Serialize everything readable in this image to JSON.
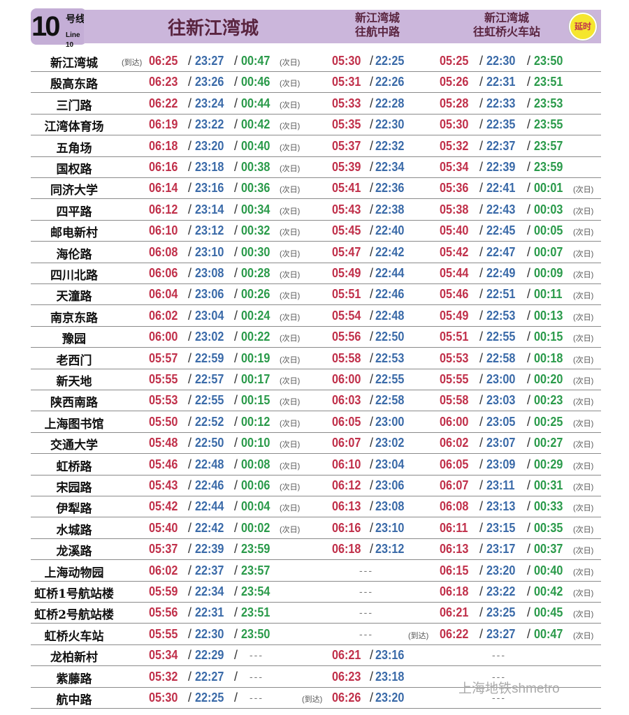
{
  "header": {
    "line_number": "10",
    "line_hao": "号线",
    "line_en": "Line 10",
    "dir1": "往新江湾城",
    "dir2_l1": "新江湾城",
    "dir2_l2": "往航中路",
    "dir3_l1": "新江湾城",
    "dir3_l2": "往虹桥火车站",
    "delay_badge": "延时"
  },
  "colors": {
    "first_train": "#c0304a",
    "last_train": "#3a6aa8",
    "extended_last": "#2a9a4a",
    "header_bg": "#cbb6db",
    "badge": "#f5e62e"
  },
  "labels": {
    "arrive": "(到达)",
    "next_day": "(次日)",
    "none": "---",
    "sep": "/"
  },
  "watermark": "上海地铁shmetro",
  "rows": [
    {
      "name": "新江湾城",
      "c1": [
        "06:25",
        "23:27",
        "00:47"
      ],
      "c1_pre": "(到达)",
      "c1_next": "(次日)",
      "c2": [
        "05:30",
        "22:25"
      ],
      "c3": [
        "05:25",
        "22:30",
        "23:50"
      ]
    },
    {
      "name": "殷高东路",
      "c1": [
        "06:23",
        "23:26",
        "00:46"
      ],
      "c1_next": "(次日)",
      "c2": [
        "05:31",
        "22:26"
      ],
      "c3": [
        "05:26",
        "22:31",
        "23:51"
      ]
    },
    {
      "name": "三门路",
      "c1": [
        "06:22",
        "23:24",
        "00:44"
      ],
      "c1_next": "(次日)",
      "c2": [
        "05:33",
        "22:28"
      ],
      "c3": [
        "05:28",
        "22:33",
        "23:53"
      ]
    },
    {
      "name": "江湾体育场",
      "c1": [
        "06:19",
        "23:22",
        "00:42"
      ],
      "c1_next": "(次日)",
      "c2": [
        "05:35",
        "22:30"
      ],
      "c3": [
        "05:30",
        "22:35",
        "23:55"
      ]
    },
    {
      "name": "五角场",
      "c1": [
        "06:18",
        "23:20",
        "00:40"
      ],
      "c1_next": "(次日)",
      "c2": [
        "05:37",
        "22:32"
      ],
      "c3": [
        "05:32",
        "22:37",
        "23:57"
      ]
    },
    {
      "name": "国权路",
      "c1": [
        "06:16",
        "23:18",
        "00:38"
      ],
      "c1_next": "(次日)",
      "c2": [
        "05:39",
        "22:34"
      ],
      "c3": [
        "05:34",
        "22:39",
        "23:59"
      ]
    },
    {
      "name": "同济大学",
      "c1": [
        "06:14",
        "23:16",
        "00:36"
      ],
      "c1_next": "(次日)",
      "c2": [
        "05:41",
        "22:36"
      ],
      "c3": [
        "05:36",
        "22:41",
        "00:01"
      ],
      "c3_next": "(次日)"
    },
    {
      "name": "四平路",
      "c1": [
        "06:12",
        "23:14",
        "00:34"
      ],
      "c1_next": "(次日)",
      "c2": [
        "05:43",
        "22:38"
      ],
      "c3": [
        "05:38",
        "22:43",
        "00:03"
      ],
      "c3_next": "(次日)"
    },
    {
      "name": "邮电新村",
      "c1": [
        "06:10",
        "23:12",
        "00:32"
      ],
      "c1_next": "(次日)",
      "c2": [
        "05:45",
        "22:40"
      ],
      "c3": [
        "05:40",
        "22:45",
        "00:05"
      ],
      "c3_next": "(次日)"
    },
    {
      "name": "海伦路",
      "c1": [
        "06:08",
        "23:10",
        "00:30"
      ],
      "c1_next": "(次日)",
      "c2": [
        "05:47",
        "22:42"
      ],
      "c3": [
        "05:42",
        "22:47",
        "00:07"
      ],
      "c3_next": "(次日)"
    },
    {
      "name": "四川北路",
      "c1": [
        "06:06",
        "23:08",
        "00:28"
      ],
      "c1_next": "(次日)",
      "c2": [
        "05:49",
        "22:44"
      ],
      "c3": [
        "05:44",
        "22:49",
        "00:09"
      ],
      "c3_next": "(次日)"
    },
    {
      "name": "天潼路",
      "c1": [
        "06:04",
        "23:06",
        "00:26"
      ],
      "c1_next": "(次日)",
      "c2": [
        "05:51",
        "22:46"
      ],
      "c3": [
        "05:46",
        "22:51",
        "00:11"
      ],
      "c3_next": "(次日)"
    },
    {
      "name": "南京东路",
      "c1": [
        "06:02",
        "23:04",
        "00:24"
      ],
      "c1_next": "(次日)",
      "c2": [
        "05:54",
        "22:48"
      ],
      "c3": [
        "05:49",
        "22:53",
        "00:13"
      ],
      "c3_next": "(次日)"
    },
    {
      "name": "豫园",
      "c1": [
        "06:00",
        "23:02",
        "00:22"
      ],
      "c1_next": "(次日)",
      "c2": [
        "05:56",
        "22:50"
      ],
      "c3": [
        "05:51",
        "22:55",
        "00:15"
      ],
      "c3_next": "(次日)"
    },
    {
      "name": "老西门",
      "c1": [
        "05:57",
        "22:59",
        "00:19"
      ],
      "c1_next": "(次日)",
      "c2": [
        "05:58",
        "22:53"
      ],
      "c3": [
        "05:53",
        "22:58",
        "00:18"
      ],
      "c3_next": "(次日)"
    },
    {
      "name": "新天地",
      "c1": [
        "05:55",
        "22:57",
        "00:17"
      ],
      "c1_next": "(次日)",
      "c2": [
        "06:00",
        "22:55"
      ],
      "c3": [
        "05:55",
        "23:00",
        "00:20"
      ],
      "c3_next": "(次日)"
    },
    {
      "name": "陕西南路",
      "c1": [
        "05:53",
        "22:55",
        "00:15"
      ],
      "c1_next": "(次日)",
      "c2": [
        "06:03",
        "22:58"
      ],
      "c3": [
        "05:58",
        "23:03",
        "00:23"
      ],
      "c3_next": "(次日)"
    },
    {
      "name": "上海图书馆",
      "c1": [
        "05:50",
        "22:52",
        "00:12"
      ],
      "c1_next": "(次日)",
      "c2": [
        "06:05",
        "23:00"
      ],
      "c3": [
        "06:00",
        "23:05",
        "00:25"
      ],
      "c3_next": "(次日)"
    },
    {
      "name": "交通大学",
      "c1": [
        "05:48",
        "22:50",
        "00:10"
      ],
      "c1_next": "(次日)",
      "c2": [
        "06:07",
        "23:02"
      ],
      "c3": [
        "06:02",
        "23:07",
        "00:27"
      ],
      "c3_next": "(次日)"
    },
    {
      "name": "虹桥路",
      "c1": [
        "05:46",
        "22:48",
        "00:08"
      ],
      "c1_next": "(次日)",
      "c2": [
        "06:10",
        "23:04"
      ],
      "c3": [
        "06:05",
        "23:09",
        "00:29"
      ],
      "c3_next": "(次日)"
    },
    {
      "name": "宋园路",
      "c1": [
        "05:43",
        "22:46",
        "00:06"
      ],
      "c1_next": "(次日)",
      "c2": [
        "06:12",
        "23:06"
      ],
      "c3": [
        "06:07",
        "23:11",
        "00:31"
      ],
      "c3_next": "(次日)"
    },
    {
      "name": "伊犁路",
      "c1": [
        "05:42",
        "22:44",
        "00:04"
      ],
      "c1_next": "(次日)",
      "c2": [
        "06:13",
        "23:08"
      ],
      "c3": [
        "06:08",
        "23:13",
        "00:33"
      ],
      "c3_next": "(次日)"
    },
    {
      "name": "水城路",
      "c1": [
        "05:40",
        "22:42",
        "00:02"
      ],
      "c1_next": "(次日)",
      "c2": [
        "06:16",
        "23:10"
      ],
      "c3": [
        "06:11",
        "23:15",
        "00:35"
      ],
      "c3_next": "(次日)"
    },
    {
      "name": "龙溪路",
      "c1": [
        "05:37",
        "22:39",
        "23:59"
      ],
      "c2": [
        "06:18",
        "23:12"
      ],
      "c3": [
        "06:13",
        "23:17",
        "00:37"
      ],
      "c3_next": "(次日)"
    },
    {
      "name": "上海动物园",
      "c1": [
        "06:02",
        "22:37",
        "23:57"
      ],
      "c2": null,
      "c3": [
        "06:15",
        "23:20",
        "00:40"
      ],
      "c3_next": "(次日)"
    },
    {
      "name": "虹桥1号航站楼",
      "c1": [
        "05:59",
        "22:34",
        "23:54"
      ],
      "c2": null,
      "c3": [
        "06:18",
        "23:22",
        "00:42"
      ],
      "c3_next": "(次日)"
    },
    {
      "name": "虹桥2号航站楼",
      "c1": [
        "05:56",
        "22:31",
        "23:51"
      ],
      "c2": null,
      "c3": [
        "06:21",
        "23:25",
        "00:45"
      ],
      "c3_next": "(次日)"
    },
    {
      "name": "虹桥火车站",
      "c1": [
        "05:55",
        "22:30",
        "23:50"
      ],
      "c2": null,
      "c3": [
        "06:22",
        "23:27",
        "00:47"
      ],
      "c3_pre": "(到达)",
      "c3_next": "(次日)"
    },
    {
      "name": "龙柏新村",
      "c1": [
        "05:34",
        "22:29",
        "---"
      ],
      "c2": [
        "06:21",
        "23:16"
      ],
      "c3": null
    },
    {
      "name": "紫藤路",
      "c1": [
        "05:32",
        "22:27",
        "---"
      ],
      "c2": [
        "06:23",
        "23:18"
      ],
      "c3": null
    },
    {
      "name": "航中路",
      "c1": [
        "05:30",
        "22:25",
        "---"
      ],
      "c2": [
        "06:26",
        "23:20"
      ],
      "c2_pre": "(到达)",
      "c3": null
    }
  ]
}
